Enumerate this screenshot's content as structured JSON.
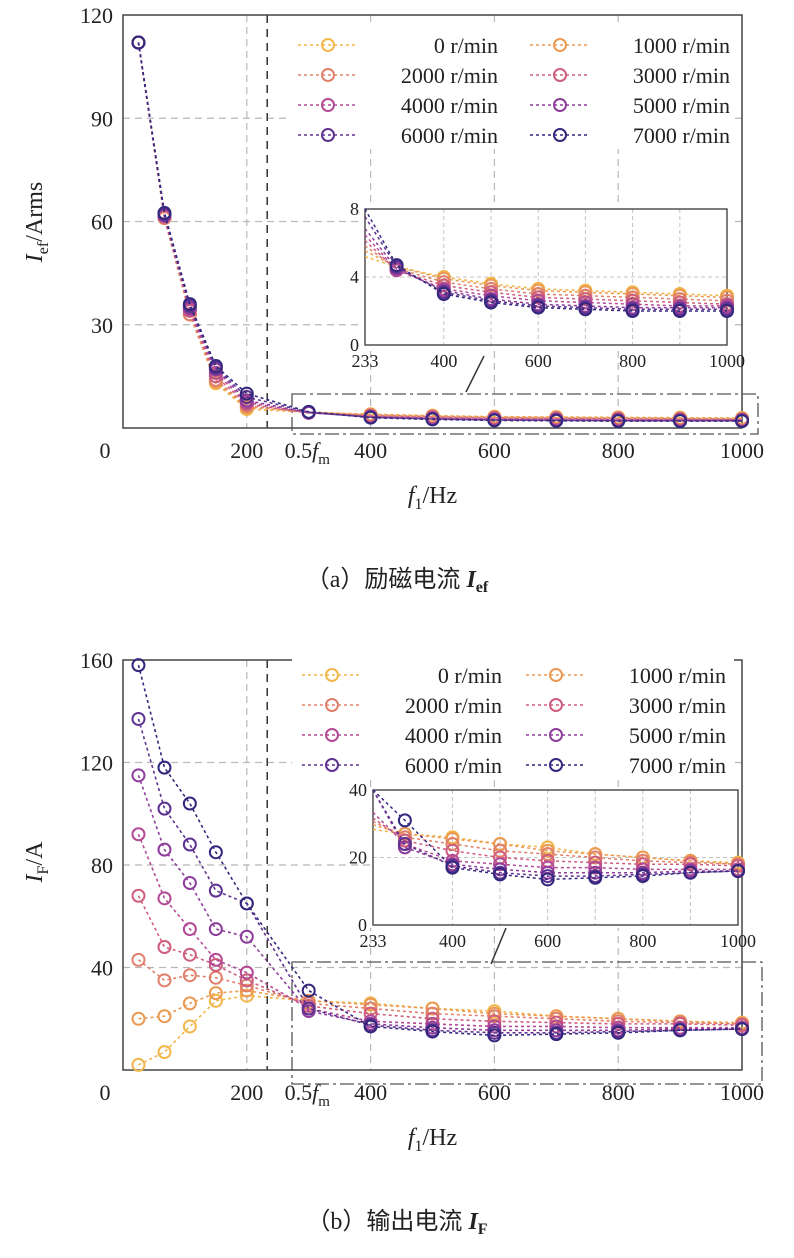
{
  "colors": {
    "0 r/min": "#f2b64a",
    "1000 r/min": "#eb9a52",
    "2000 r/min": "#e0806a",
    "3000 r/min": "#cf5d7e",
    "4000 r/min": "#b34a96",
    "5000 r/min": "#8e3d9c",
    "6000 r/min": "#5e3290",
    "7000 r/min": "#33277e"
  },
  "chart_data": [
    {
      "type": "line",
      "caption_prefix": "（a）励磁电流 ",
      "caption_var": "I",
      "caption_sub": "ef",
      "ylabel_var": "I",
      "ylabel_sub": "ef",
      "ylabel_unit": "/Arms",
      "xlabel_var": "f",
      "xlabel_sub": "1",
      "xlabel_unit": "/Hz",
      "xlim": [
        0,
        1000
      ],
      "ylim": [
        0,
        120
      ],
      "x_ticks": [
        "0",
        "200",
        "400",
        "600",
        "800",
        "1000"
      ],
      "y_ticks": [
        "30",
        "60",
        "90",
        "120"
      ],
      "marker_label_prefix": "0.5",
      "marker_label_var": "f",
      "marker_label_sub": "m",
      "marker_x": 233,
      "x": [
        25,
        67,
        108,
        150,
        200,
        300,
        400,
        500,
        600,
        700,
        800,
        900,
        1000
      ],
      "series": [
        {
          "name": "0 r/min",
          "values": [
            112,
            61,
            33,
            13,
            5.5,
            4.6,
            4.0,
            3.6,
            3.3,
            3.2,
            3.1,
            3.0,
            2.9
          ]
        },
        {
          "name": "1000 r/min",
          "values": [
            112,
            61,
            33,
            13.5,
            6,
            4.6,
            3.9,
            3.5,
            3.2,
            3.1,
            3.0,
            2.9,
            2.8
          ]
        },
        {
          "name": "2000 r/min",
          "values": [
            112,
            61,
            33,
            14,
            6.5,
            4.5,
            3.7,
            3.3,
            3.0,
            2.9,
            2.8,
            2.7,
            2.6
          ]
        },
        {
          "name": "3000 r/min",
          "values": [
            112,
            61.5,
            34,
            15,
            7,
            4.4,
            3.5,
            3.1,
            2.8,
            2.7,
            2.6,
            2.5,
            2.4
          ]
        },
        {
          "name": "4000 r/min",
          "values": [
            112,
            61.5,
            34.5,
            16,
            7.5,
            4.4,
            3.3,
            2.9,
            2.6,
            2.5,
            2.4,
            2.3,
            2.3
          ]
        },
        {
          "name": "5000 r/min",
          "values": [
            112,
            62,
            35,
            17,
            8,
            4.5,
            3.2,
            2.7,
            2.4,
            2.3,
            2.2,
            2.2,
            2.2
          ]
        },
        {
          "name": "6000 r/min",
          "values": [
            112,
            62,
            35.5,
            17.5,
            9,
            4.6,
            3.1,
            2.6,
            2.3,
            2.2,
            2.1,
            2.1,
            2.1
          ]
        },
        {
          "name": "7000 r/min",
          "values": [
            112,
            62.5,
            36,
            18,
            10,
            4.7,
            3.0,
            2.5,
            2.2,
            2.1,
            2.0,
            2.0,
            2.0
          ]
        }
      ],
      "inset": {
        "xlim": [
          233,
          1000
        ],
        "ylim": [
          0,
          8
        ],
        "x_ticks": [
          "233",
          "400",
          "600",
          "800",
          "1000"
        ],
        "y_ticks": [
          "0",
          "4",
          "8"
        ]
      }
    },
    {
      "type": "line",
      "caption_prefix": "（b）输出电流 ",
      "caption_var": "I",
      "caption_sub": "F",
      "ylabel_var": "I",
      "ylabel_sub": "F",
      "ylabel_unit": "/A",
      "xlabel_var": "f",
      "xlabel_sub": "1",
      "xlabel_unit": "/Hz",
      "xlim": [
        0,
        1000
      ],
      "ylim": [
        0,
        160
      ],
      "x_ticks": [
        "0",
        "200",
        "400",
        "600",
        "800",
        "1000"
      ],
      "y_ticks": [
        "40",
        "80",
        "120",
        "160"
      ],
      "marker_label_prefix": "0.5",
      "marker_label_var": "f",
      "marker_label_sub": "m",
      "marker_x": 233,
      "x": [
        25,
        67,
        108,
        150,
        200,
        300,
        400,
        500,
        600,
        700,
        800,
        900,
        1000
      ],
      "series": [
        {
          "name": "0 r/min",
          "values": [
            2,
            7,
            17,
            27,
            29,
            27,
            26,
            24,
            23,
            21,
            20,
            19,
            18.5
          ]
        },
        {
          "name": "1000 r/min",
          "values": [
            20,
            21,
            26,
            30,
            31,
            27,
            25.5,
            24,
            22,
            21,
            20,
            19,
            18
          ]
        },
        {
          "name": "2000 r/min",
          "values": [
            43,
            35,
            37,
            36,
            33,
            26,
            24,
            22,
            21,
            20,
            19,
            18.5,
            18
          ]
        },
        {
          "name": "3000 r/min",
          "values": [
            68,
            48,
            45,
            41,
            35,
            25,
            22,
            20,
            19,
            18.5,
            18,
            18,
            17.5
          ]
        },
        {
          "name": "4000 r/min",
          "values": [
            92,
            67,
            55,
            43,
            38,
            24,
            19,
            18,
            17,
            17,
            16.5,
            16.5,
            16.5
          ]
        },
        {
          "name": "5000 r/min",
          "values": [
            115,
            86,
            73,
            55,
            52,
            23,
            18,
            16.5,
            15.5,
            15.5,
            15.5,
            16,
            16
          ]
        },
        {
          "name": "6000 r/min",
          "values": [
            137,
            102,
            88,
            70,
            65,
            24,
            17.5,
            15.5,
            14.5,
            14.5,
            15,
            15.5,
            16
          ]
        },
        {
          "name": "7000 r/min",
          "values": [
            158,
            118,
            104,
            85,
            65,
            31,
            17,
            15,
            13.5,
            14,
            14.5,
            15.5,
            16
          ]
        }
      ],
      "inset": {
        "xlim": [
          233,
          1000
        ],
        "ylim": [
          0,
          40
        ],
        "x_ticks": [
          "233",
          "400",
          "600",
          "800",
          "1000"
        ],
        "y_ticks": [
          "0",
          "20",
          "40"
        ]
      }
    }
  ]
}
